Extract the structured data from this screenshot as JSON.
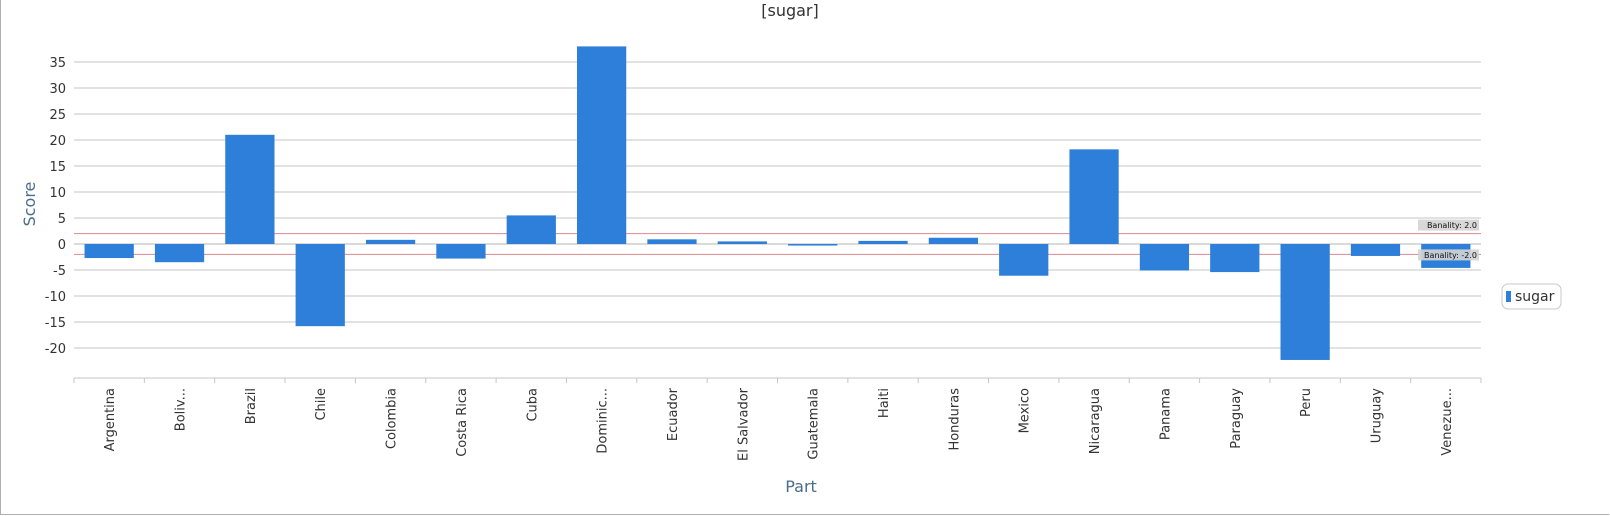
{
  "chart_data": {
    "type": "bar",
    "title": "[sugar]",
    "xlabel": "Part",
    "ylabel": "Score",
    "categories": [
      "Argentina",
      "Boliv...",
      "Brazil",
      "Chile",
      "Colombia",
      "Costa Rica",
      "Cuba",
      "Dominic...",
      "Ecuador",
      "El Salvador",
      "Guatemala",
      "Haiti",
      "Honduras",
      "Mexico",
      "Nicaragua",
      "Panama",
      "Paraguay",
      "Peru",
      "Uruguay",
      "Venezue..."
    ],
    "series": [
      {
        "name": "sugar",
        "color": "#2e7fd9",
        "values": [
          -2.7,
          -3.5,
          21.0,
          -15.8,
          0.8,
          -2.8,
          5.5,
          38.0,
          0.9,
          0.5,
          -0.3,
          0.6,
          1.2,
          -6.1,
          18.2,
          -5.1,
          -5.4,
          -22.3,
          -2.3,
          -4.6
        ]
      }
    ],
    "ylim": [
      -25,
      38
    ],
    "yticks": [
      -20,
      -15,
      -10,
      -5,
      0,
      5,
      10,
      15,
      20,
      25,
      30,
      35
    ],
    "grid": true,
    "legend": "right",
    "reference_lines": [
      {
        "label": "Banality: 2.0",
        "value": 2.0,
        "color": "#d98c8c"
      },
      {
        "label": "Banality: -2.0",
        "value": -2.0,
        "color": "#d98c8c"
      }
    ]
  }
}
